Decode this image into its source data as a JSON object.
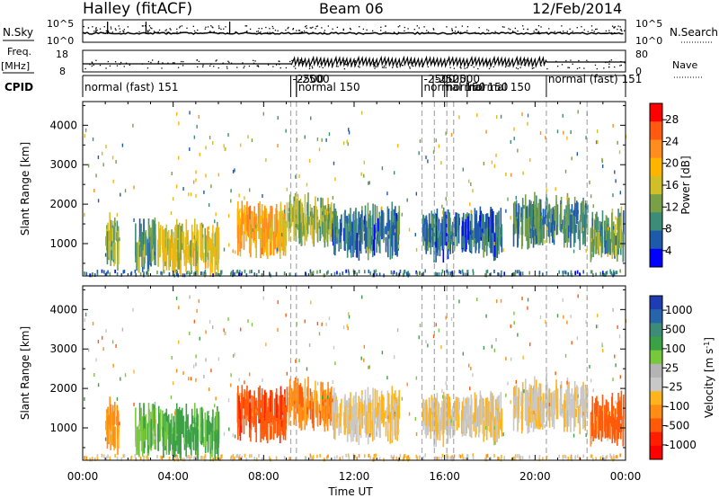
{
  "header": {
    "title": "Halley (fitACF)",
    "beam": "Beam 06",
    "date": "12/Feb/2014"
  },
  "top_panels": {
    "nsky_label": "N.Sky",
    "nsky_ticks": [
      "10^5",
      "10^0"
    ],
    "nsearch_label": "N.Search",
    "nsearch_ticks": [
      "10^5",
      "10^0"
    ],
    "freq_label": "Freq.",
    "freq_unit": "[MHz]",
    "freq_ticks": [
      "18",
      "8"
    ],
    "nave_label": "Nave",
    "nave_ticks": [
      "80",
      "0"
    ],
    "cpid_label": "CPID",
    "cpid_segments": [
      {
        "label": "normal (fast) 151",
        "start": 0.0
      },
      {
        "label": "-2500",
        "start": 9.2
      },
      {
        "label": "-2500",
        "start": 9.45
      },
      {
        "label": "normal 150",
        "start": 9.45
      },
      {
        "label": "-2500",
        "start": 15.0
      },
      {
        "label": "-2500",
        "start": 15.5
      },
      {
        "label": "-2500",
        "start": 16.1
      },
      {
        "label": "normal 150",
        "start": 15.0
      },
      {
        "label": "normal 150",
        "start": 16.0
      },
      {
        "label": "normal 150",
        "start": 17.0
      },
      {
        "label": "normal (fast) 151",
        "start": 20.5
      }
    ]
  },
  "power_panel": {
    "ylabel": "Slant Range [km]",
    "colorbar_label": "Power [dB]",
    "colorbar_ticks": [
      "28",
      "24",
      "20",
      "16",
      "12",
      "8",
      "4"
    ],
    "colorbar_colors": [
      "#ff0000",
      "#ff5a10",
      "#ff8c1e",
      "#ffb400",
      "#d2be28",
      "#78a046",
      "#3c8c78",
      "#1e5aaa",
      "#0000ff"
    ]
  },
  "velocity_panel": {
    "ylabel": "Slant Range [km]",
    "colorbar_label": "Velocity [m s^-1]",
    "colorbar_ticks": [
      "1000",
      "500",
      "100",
      "25",
      "-25",
      "-100",
      "-500",
      "-1000"
    ],
    "colorbar_colors": [
      "#1e3cb4",
      "#2864aa",
      "#3c8c78",
      "#3ca046",
      "#78c83c",
      "#b4b4b4",
      "#c8c8c8",
      "#ffb41e",
      "#ff8c14",
      "#ff5a0a",
      "#ff1e00",
      "#ff0000"
    ]
  },
  "chart_data": {
    "type": "heatmap",
    "xlabel": "Time UT",
    "x_ticks": [
      "00:00",
      "04:00",
      "08:00",
      "12:00",
      "16:00",
      "20:00",
      "00:00"
    ],
    "xlim_hours": [
      0,
      24
    ],
    "ylim_km": [
      180,
      4600
    ],
    "y_ticks": [
      1000,
      2000,
      3000,
      4000
    ],
    "frequency_change_times_hours": [
      9.2,
      9.45,
      15.0,
      15.55,
      16.1,
      16.4,
      20.5,
      22.3
    ],
    "echo_regions": [
      {
        "t_start": 0.0,
        "t_end": 24.0,
        "range_km": 250,
        "power_db": 6,
        "velocity": -30
      },
      {
        "t_start": 1.0,
        "t_end": 1.6,
        "range_km": 1050,
        "power_db": 12,
        "velocity": -60
      },
      {
        "t_start": 2.3,
        "t_end": 3.2,
        "range_km": 1000,
        "power_db": 10,
        "velocity": 80
      },
      {
        "t_start": 3.3,
        "t_end": 6.0,
        "range_km": 900,
        "power_db": 16,
        "velocity": 150
      },
      {
        "t_start": 6.8,
        "t_end": 9.0,
        "range_km": 1350,
        "power_db": 20,
        "velocity": -200
      },
      {
        "t_start": 9.0,
        "t_end": 11.0,
        "range_km": 1600,
        "power_db": 12,
        "velocity": -80
      },
      {
        "t_start": 11.0,
        "t_end": 14.0,
        "range_km": 1300,
        "power_db": 6,
        "velocity": -20
      },
      {
        "t_start": 15.0,
        "t_end": 18.5,
        "range_km": 1250,
        "power_db": 6,
        "velocity": -20
      },
      {
        "t_start": 19.0,
        "t_end": 22.3,
        "range_km": 1550,
        "power_db": 8,
        "velocity": -15
      },
      {
        "t_start": 22.4,
        "t_end": 23.9,
        "range_km": 1200,
        "power_db": 10,
        "velocity": -150
      }
    ]
  }
}
